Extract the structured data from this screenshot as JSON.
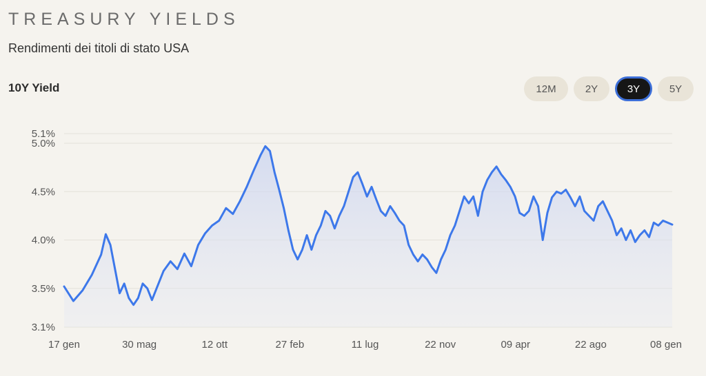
{
  "header": {
    "title": "TREASURY YIELDS",
    "subtitle": "Rendimenti dei titoli di stato USA",
    "series_label": "10Y Yield"
  },
  "ranges": [
    {
      "label": "12M",
      "active": false
    },
    {
      "label": "2Y",
      "active": false
    },
    {
      "label": "3Y",
      "active": true
    },
    {
      "label": "5Y",
      "active": false
    }
  ],
  "colors": {
    "line": "#3d78ea",
    "active_tab_border": "#3d6fd8",
    "background": "#f5f3ee"
  },
  "chart_data": {
    "type": "line",
    "title": "",
    "xlabel": "",
    "ylabel": "",
    "ylim": [
      3.1,
      5.1
    ],
    "y_ticks": [
      "3.1%",
      "3.5%",
      "4.0%",
      "4.5%",
      "5.0%",
      "5.1%"
    ],
    "x_ticks": [
      "17 gen",
      "30 mag",
      "12 ott",
      "27 feb",
      "11 lug",
      "22 nov",
      "09 apr",
      "22 ago",
      "08 gen"
    ],
    "grid": true,
    "series": [
      {
        "points": [
          [
            0,
            3.52
          ],
          [
            4,
            3.37
          ],
          [
            8,
            3.48
          ],
          [
            12,
            3.64
          ],
          [
            16,
            3.85
          ],
          [
            18,
            4.06
          ],
          [
            20,
            3.95
          ],
          [
            22,
            3.7
          ],
          [
            24,
            3.45
          ],
          [
            26,
            3.55
          ],
          [
            28,
            3.4
          ],
          [
            30,
            3.33
          ],
          [
            32,
            3.4
          ],
          [
            34,
            3.55
          ],
          [
            36,
            3.5
          ],
          [
            38,
            3.38
          ],
          [
            40,
            3.5
          ],
          [
            43,
            3.68
          ],
          [
            46,
            3.78
          ],
          [
            49,
            3.7
          ],
          [
            52,
            3.86
          ],
          [
            55,
            3.73
          ],
          [
            58,
            3.95
          ],
          [
            61,
            4.07
          ],
          [
            64,
            4.15
          ],
          [
            67,
            4.2
          ],
          [
            70,
            4.33
          ],
          [
            73,
            4.27
          ],
          [
            76,
            4.4
          ],
          [
            79,
            4.55
          ],
          [
            82,
            4.72
          ],
          [
            85,
            4.88
          ],
          [
            87,
            4.97
          ],
          [
            89,
            4.92
          ],
          [
            91,
            4.7
          ],
          [
            93,
            4.52
          ],
          [
            95,
            4.33
          ],
          [
            97,
            4.1
          ],
          [
            99,
            3.9
          ],
          [
            101,
            3.8
          ],
          [
            103,
            3.9
          ],
          [
            105,
            4.05
          ],
          [
            107,
            3.9
          ],
          [
            109,
            4.05
          ],
          [
            111,
            4.15
          ],
          [
            113,
            4.3
          ],
          [
            115,
            4.25
          ],
          [
            117,
            4.12
          ],
          [
            119,
            4.25
          ],
          [
            121,
            4.35
          ],
          [
            123,
            4.5
          ],
          [
            125,
            4.65
          ],
          [
            127,
            4.7
          ],
          [
            129,
            4.58
          ],
          [
            131,
            4.45
          ],
          [
            133,
            4.55
          ],
          [
            135,
            4.42
          ],
          [
            137,
            4.3
          ],
          [
            139,
            4.25
          ],
          [
            141,
            4.35
          ],
          [
            143,
            4.28
          ],
          [
            145,
            4.2
          ],
          [
            147,
            4.15
          ],
          [
            149,
            3.95
          ],
          [
            151,
            3.85
          ],
          [
            153,
            3.78
          ],
          [
            155,
            3.85
          ],
          [
            157,
            3.8
          ],
          [
            159,
            3.72
          ],
          [
            161,
            3.66
          ],
          [
            163,
            3.8
          ],
          [
            165,
            3.9
          ],
          [
            167,
            4.05
          ],
          [
            169,
            4.15
          ],
          [
            171,
            4.3
          ],
          [
            173,
            4.45
          ],
          [
            175,
            4.38
          ],
          [
            177,
            4.45
          ],
          [
            179,
            4.25
          ],
          [
            181,
            4.5
          ],
          [
            183,
            4.62
          ],
          [
            185,
            4.7
          ],
          [
            187,
            4.76
          ],
          [
            189,
            4.68
          ],
          [
            191,
            4.62
          ],
          [
            193,
            4.55
          ],
          [
            195,
            4.45
          ],
          [
            197,
            4.28
          ],
          [
            199,
            4.25
          ],
          [
            201,
            4.3
          ],
          [
            203,
            4.45
          ],
          [
            205,
            4.35
          ],
          [
            207,
            4.0
          ],
          [
            209,
            4.28
          ],
          [
            211,
            4.44
          ],
          [
            213,
            4.5
          ],
          [
            215,
            4.48
          ],
          [
            217,
            4.52
          ],
          [
            219,
            4.44
          ],
          [
            221,
            4.35
          ],
          [
            223,
            4.45
          ],
          [
            225,
            4.3
          ],
          [
            227,
            4.25
          ],
          [
            229,
            4.2
          ],
          [
            231,
            4.35
          ],
          [
            233,
            4.4
          ],
          [
            235,
            4.3
          ],
          [
            237,
            4.2
          ],
          [
            239,
            4.05
          ],
          [
            241,
            4.12
          ],
          [
            243,
            4.0
          ],
          [
            245,
            4.1
          ],
          [
            247,
            3.98
          ],
          [
            249,
            4.05
          ],
          [
            251,
            4.1
          ],
          [
            253,
            4.03
          ],
          [
            255,
            4.18
          ],
          [
            257,
            4.15
          ],
          [
            259,
            4.2
          ],
          [
            261,
            4.18
          ],
          [
            263,
            4.16
          ]
        ]
      }
    ]
  }
}
